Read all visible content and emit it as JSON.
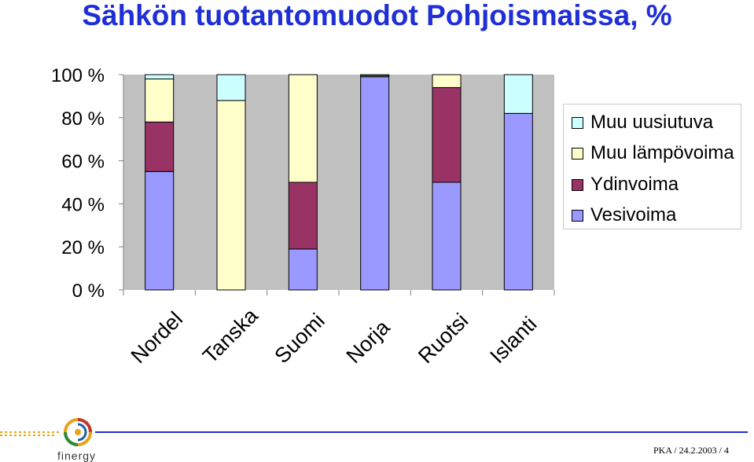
{
  "title": "Sähkön tuotantomuodot Pohjoismaissa, %",
  "footer": {
    "ref": "PKA / 24.2.2003 / 4",
    "logo_text": "finergy"
  },
  "colors": {
    "vesivoima": "#9999ff",
    "ydinvoima": "#993366",
    "muu_lampovoima": "#ffffcc",
    "muu_uusiutuva": "#ccffff",
    "plot_bg": "#c0c0c0",
    "title": "#1f2fd6",
    "accent_line": "#1f2fd6",
    "logo_accent": "#e8a21a"
  },
  "chart_data": {
    "type": "bar",
    "stacked": true,
    "title": "Sähkön tuotantomuodot Pohjoismaissa, %",
    "categories": [
      "Nordel",
      "Tanska",
      "Suomi",
      "Norja",
      "Ruotsi",
      "Islanti"
    ],
    "series": [
      {
        "name": "Vesivoima",
        "values": [
          55,
          0,
          19,
          99,
          50,
          82
        ]
      },
      {
        "name": "Ydinvoima",
        "values": [
          23,
          0,
          31,
          0,
          44,
          0
        ]
      },
      {
        "name": "Muu lämpövoima",
        "values": [
          20,
          88,
          50,
          0.5,
          6,
          0
        ]
      },
      {
        "name": "Muu uusiutuva",
        "values": [
          2,
          12,
          0,
          0.5,
          0,
          18
        ]
      }
    ],
    "yticks": [
      "0 %",
      "20 %",
      "40 %",
      "60 %",
      "80 %",
      "100 %"
    ],
    "ylim": [
      0,
      100
    ],
    "legend_position": "right",
    "legend_order": [
      "Muu uusiutuva",
      "Muu lämpövoima",
      "Ydinvoima",
      "Vesivoima"
    ],
    "grid": false
  }
}
